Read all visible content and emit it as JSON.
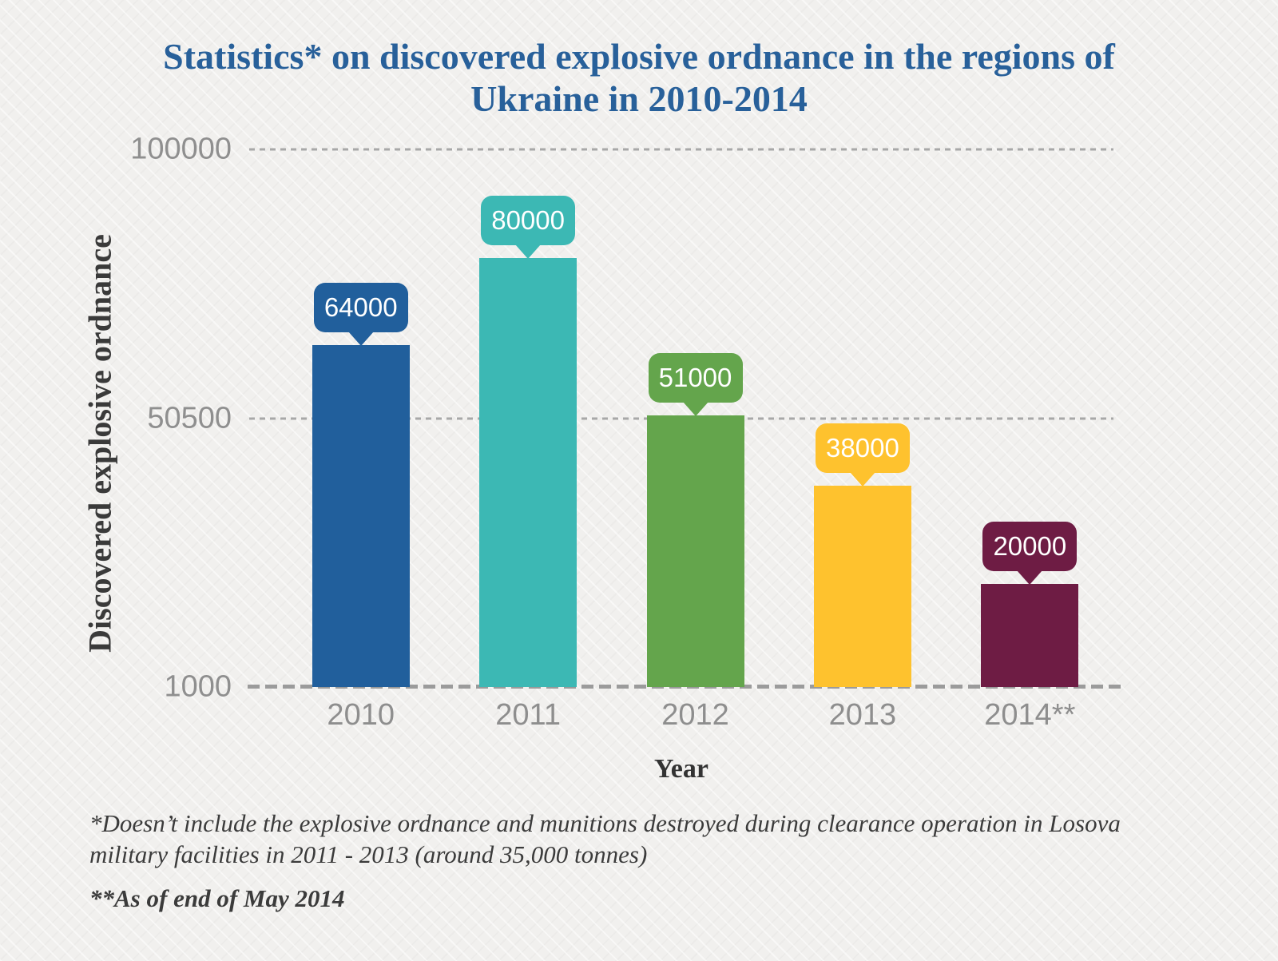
{
  "title": {
    "line1": "Statistics* on discovered explosive ordnance in the regions of",
    "line2": "Ukraine in 2010-2014"
  },
  "y_axis": {
    "label": "Discovered explosive ordnance",
    "ticks": [
      "100000",
      "50500",
      "1000"
    ]
  },
  "x_axis": {
    "label": "Year"
  },
  "footnotes": {
    "note1": "*Doesn’t include the explosive ordnance and munitions destroyed during clearance operation in Losova military facilities in 2011 - 2013 (around 35,000 tonnes)",
    "note2": "**As of end of May 2014"
  },
  "colors": {
    "title_text": "#28609a",
    "tick_text": "#8f8f8f",
    "gridline": "#a8a8a8",
    "baseline": "#9b9b9b",
    "axis_title_text": "#3a3a3a",
    "background": "#f1f0ee",
    "bubble_text": "#ffffff"
  },
  "chart_data": {
    "type": "bar",
    "title": "Statistics* on discovered explosive ordnance in the regions of Ukraine in 2010-2014",
    "xlabel": "Year",
    "ylabel": "Discovered explosive ordnance",
    "categories": [
      "2010",
      "2011",
      "2012",
      "2013",
      "2014**"
    ],
    "values": [
      64000,
      80000,
      51000,
      38000,
      20000
    ],
    "bar_colors": [
      "#215f9c",
      "#3cb8b4",
      "#64a54c",
      "#fec22e",
      "#6e1c44"
    ],
    "ylim": [
      1000,
      100000
    ],
    "yticks": [
      100000,
      50500,
      1000
    ],
    "grid": "horizontal dashed",
    "legend": "none",
    "data_labels": "callout bubble above each bar"
  }
}
